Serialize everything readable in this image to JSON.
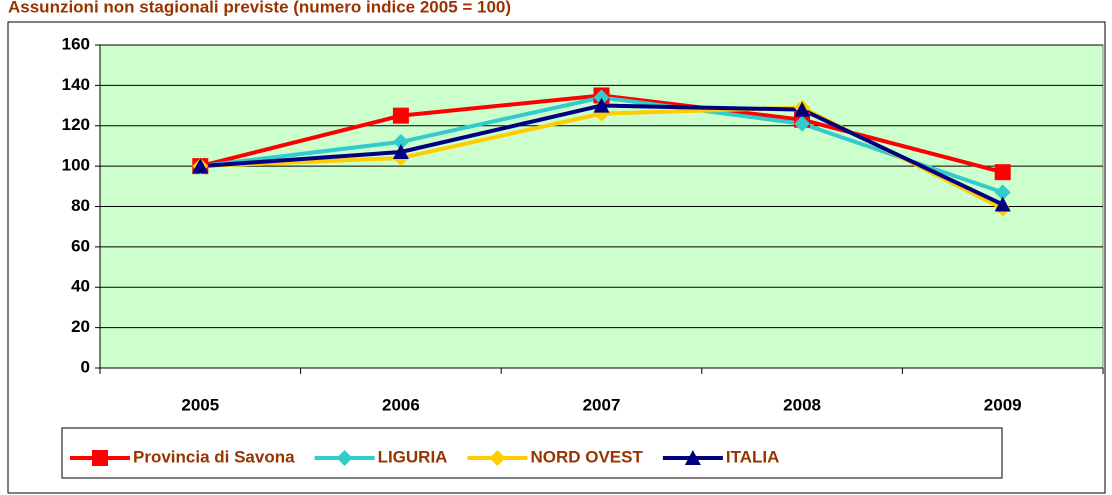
{
  "chart_data": {
    "type": "line",
    "title": "Assunzioni non stagionali previste (numero indice 2005 = 100)",
    "categories": [
      "2005",
      "2006",
      "2007",
      "2008",
      "2009"
    ],
    "series": [
      {
        "name": "Provincia di Savona",
        "color": "#ff0000",
        "marker": "square",
        "values": [
          100,
          125,
          135,
          123,
          97
        ]
      },
      {
        "name": "LIGURIA",
        "color": "#33cccc",
        "marker": "diamond",
        "values": [
          100,
          112,
          134,
          121,
          87
        ]
      },
      {
        "name": "NORD OVEST",
        "color": "#ffcc00",
        "marker": "diamond",
        "values": [
          100,
          104,
          126,
          129,
          79
        ]
      },
      {
        "name": "ITALIA",
        "color": "#000080",
        "marker": "triangle",
        "values": [
          100,
          107,
          130,
          128,
          81
        ]
      }
    ],
    "ylim": [
      0,
      160
    ],
    "yticks": [
      0,
      20,
      40,
      60,
      80,
      100,
      120,
      140,
      160
    ],
    "grid": true,
    "legend": "bottom",
    "plot_background": "#ccffcc"
  }
}
